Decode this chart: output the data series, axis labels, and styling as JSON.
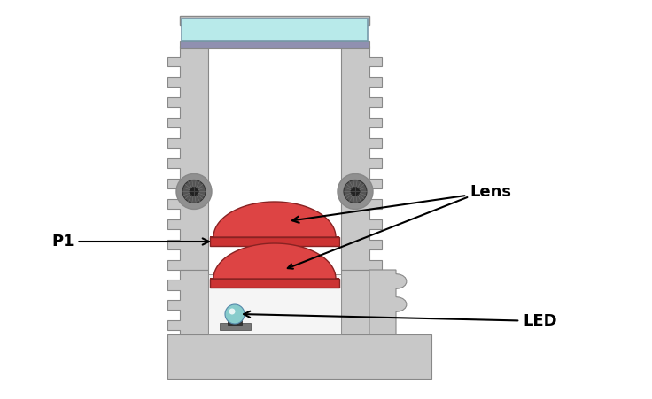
{
  "bg_color": "#ffffff",
  "housing_color": "#c8c8c8",
  "housing_dark": "#a8a8a8",
  "housing_darker": "#888888",
  "housing_light": "#d8d8d8",
  "lens_color": "#cc3333",
  "lens_dome_color": "#dd4444",
  "glass_color": "#b8eaea",
  "glass_border": "#8899aa",
  "led_color": "#88cccc",
  "led_base_color": "#555555",
  "screw_outer": "#909090",
  "screw_inner": "#444444",
  "annotation_color": "#000000",
  "label_p1": "P1",
  "label_lens": "Lens",
  "label_led": "LED",
  "fig_width": 7.36,
  "fig_height": 4.51,
  "dpi": 100
}
